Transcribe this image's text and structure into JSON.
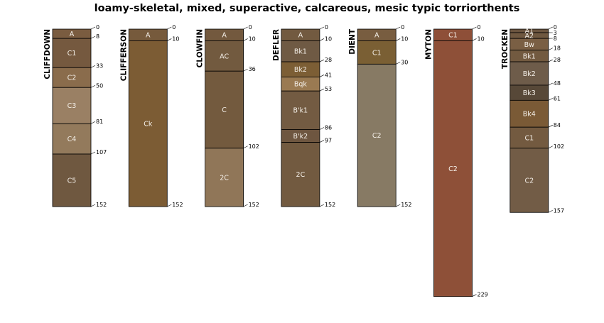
{
  "title": "loamy-skeletal, mixed, superactive, calcareous, mesic typic torriorthents",
  "depth_max": 229,
  "profiles": [
    {
      "name": "CLIFFDOWN",
      "horizons": [
        {
          "name": "A",
          "top": 0,
          "bottom": 8,
          "color": "#7a5c40"
        },
        {
          "name": "C1",
          "top": 8,
          "bottom": 33,
          "color": "#75593f"
        },
        {
          "name": "C2",
          "top": 33,
          "bottom": 50,
          "color": "#8a6c4c"
        },
        {
          "name": "C3",
          "top": 50,
          "bottom": 81,
          "color": "#9a8064"
        },
        {
          "name": "C4",
          "top": 81,
          "bottom": 107,
          "color": "#937a5c"
        },
        {
          "name": "C5",
          "top": 107,
          "bottom": 152,
          "color": "#6f5840"
        }
      ]
    },
    {
      "name": "CLIFFERSON",
      "horizons": [
        {
          "name": "A",
          "top": 0,
          "bottom": 10,
          "color": "#765a3c"
        },
        {
          "name": "Ck",
          "top": 10,
          "bottom": 152,
          "color": "#7c5c34"
        }
      ]
    },
    {
      "name": "CLOWFIN",
      "horizons": [
        {
          "name": "A",
          "top": 0,
          "bottom": 10,
          "color": "#73593e"
        },
        {
          "name": "AC",
          "top": 10,
          "bottom": 36,
          "color": "#725a3f"
        },
        {
          "name": "C",
          "top": 36,
          "bottom": 102,
          "color": "#735a3e"
        },
        {
          "name": "2C",
          "top": 102,
          "bottom": 152,
          "color": "#907658"
        }
      ]
    },
    {
      "name": "DEFLER",
      "horizons": [
        {
          "name": "A",
          "top": 0,
          "bottom": 10,
          "color": "#725a40"
        },
        {
          "name": "Bk1",
          "top": 10,
          "bottom": 28,
          "color": "#6f5a44"
        },
        {
          "name": "Bk2",
          "top": 28,
          "bottom": 41,
          "color": "#7c5e35"
        },
        {
          "name": "Bqk",
          "top": 41,
          "bottom": 53,
          "color": "#9a7a52"
        },
        {
          "name": "B'k1",
          "top": 53,
          "bottom": 86,
          "color": "#735b42"
        },
        {
          "name": "B'k2",
          "top": 86,
          "bottom": 97,
          "color": "#6e5640"
        },
        {
          "name": "2C",
          "top": 97,
          "bottom": 152,
          "color": "#725a40"
        }
      ]
    },
    {
      "name": "DIENT",
      "horizons": [
        {
          "name": "A",
          "top": 0,
          "bottom": 10,
          "color": "#785d40"
        },
        {
          "name": "C1",
          "top": 10,
          "bottom": 30,
          "color": "#7a5f34"
        },
        {
          "name": "C2",
          "top": 30,
          "bottom": 152,
          "color": "#877a64"
        }
      ]
    },
    {
      "name": "MYTON",
      "horizons": [
        {
          "name": "C1",
          "top": 0,
          "bottom": 10,
          "color": "#8e4f38"
        },
        {
          "name": "C2",
          "top": 10,
          "bottom": 229,
          "color": "#8e5038"
        }
      ]
    },
    {
      "name": "TROCKEN",
      "horizons": [
        {
          "name": "A1",
          "top": 0,
          "bottom": 3,
          "color": "#6a543e"
        },
        {
          "name": "A2",
          "top": 3,
          "bottom": 8,
          "color": "#6f5840"
        },
        {
          "name": "Bw",
          "top": 8,
          "bottom": 18,
          "color": "#7a5f44"
        },
        {
          "name": "Bk1",
          "top": 18,
          "bottom": 28,
          "color": "#725a40"
        },
        {
          "name": "Bk2",
          "top": 28,
          "bottom": 48,
          "color": "#6e5c4a"
        },
        {
          "name": "Bk3",
          "top": 48,
          "bottom": 61,
          "color": "#574838"
        },
        {
          "name": "Bk4",
          "top": 61,
          "bottom": 84,
          "color": "#7a5a36"
        },
        {
          "name": "C1",
          "top": 84,
          "bottom": 102,
          "color": "#735a40"
        },
        {
          "name": "C2",
          "top": 102,
          "bottom": 157,
          "color": "#725c46"
        }
      ]
    }
  ]
}
